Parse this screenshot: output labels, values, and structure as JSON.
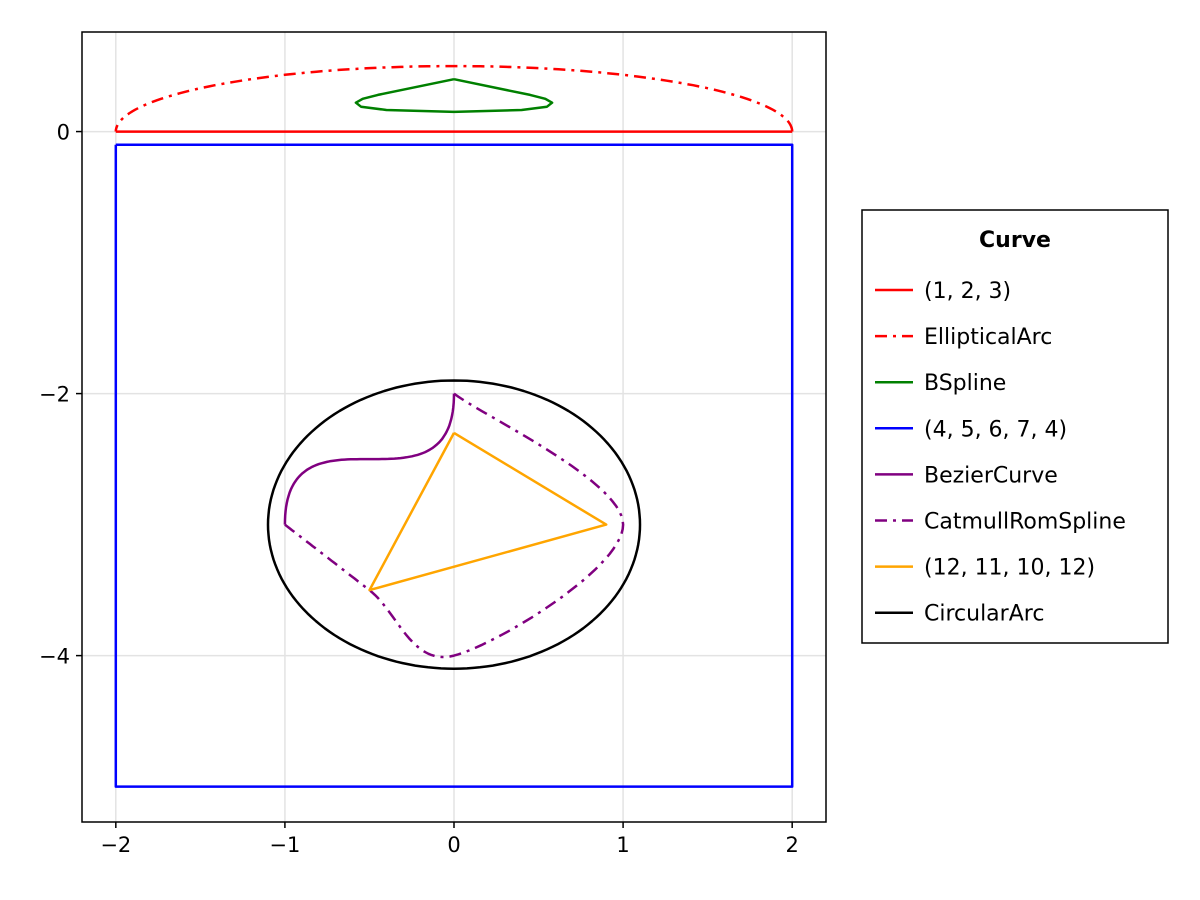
{
  "chart_data": {
    "type": "line",
    "title": "",
    "xlabel": "",
    "ylabel": "",
    "xlim": [
      -2.2,
      2.2
    ],
    "ylim": [
      -5.27,
      0.76
    ],
    "grid": true,
    "xticks": [
      -2,
      -1,
      0,
      1,
      2
    ],
    "yticks": [
      0,
      -2,
      -4
    ],
    "xtick_labels": [
      "−2",
      "−1",
      "0",
      "1",
      "2"
    ],
    "ytick_labels": [
      "0",
      "−2",
      "−4"
    ],
    "legend": {
      "title": "Curve",
      "placement": "right"
    },
    "series": [
      {
        "name": "(1, 2, 3)",
        "kind": "polyline",
        "color": "#ff0000",
        "style": "solid",
        "points": [
          [
            -2,
            0
          ],
          [
            0,
            0
          ],
          [
            2,
            0
          ]
        ]
      },
      {
        "name": "EllipticalArc",
        "kind": "elliptical-arc",
        "color": "#ff0000",
        "style": "dashdot",
        "center": [
          0,
          0
        ],
        "radii": [
          2,
          0.5
        ],
        "angle_range_deg": [
          0,
          180
        ]
      },
      {
        "name": "BSpline",
        "kind": "polyline",
        "color": "#008000",
        "style": "solid",
        "points": [
          [
            0,
            0.4
          ],
          [
            0.45,
            0.28
          ],
          [
            0.54,
            0.25
          ],
          [
            0.58,
            0.22
          ],
          [
            0.55,
            0.19
          ],
          [
            0.4,
            0.165
          ],
          [
            0,
            0.15
          ],
          [
            -0.4,
            0.165
          ],
          [
            -0.55,
            0.19
          ],
          [
            -0.58,
            0.22
          ],
          [
            -0.54,
            0.25
          ],
          [
            -0.45,
            0.28
          ],
          [
            0,
            0.4
          ]
        ]
      },
      {
        "name": "(4, 5, 6, 7, 4)",
        "kind": "polyline",
        "color": "#0000ff",
        "style": "solid",
        "points": [
          [
            -2,
            -0.1
          ],
          [
            2,
            -0.1
          ],
          [
            2,
            -5
          ],
          [
            -2,
            -5
          ],
          [
            -2,
            -0.1
          ]
        ]
      },
      {
        "name": "BezierCurve",
        "kind": "cubic-bezier",
        "color": "#800080",
        "style": "solid",
        "points": [
          [
            0,
            -2
          ],
          [
            0,
            -3
          ],
          [
            -1,
            -2
          ],
          [
            -1,
            -3
          ]
        ]
      },
      {
        "name": "CatmullRomSpline",
        "kind": "catmull-rom",
        "color": "#800080",
        "style": "dashdot",
        "points": [
          [
            -1,
            -3
          ],
          [
            -0.5,
            -3.5
          ],
          [
            0,
            -4
          ],
          [
            1,
            -3
          ],
          [
            0,
            -2
          ]
        ]
      },
      {
        "name": "(12, 11, 10, 12)",
        "kind": "polyline",
        "color": "#ffa500",
        "style": "solid",
        "points": [
          [
            0,
            -2.3
          ],
          [
            0.9,
            -3
          ],
          [
            -0.5,
            -3.5
          ],
          [
            0,
            -2.3
          ]
        ]
      },
      {
        "name": "CircularArc",
        "kind": "circle",
        "color": "#000000",
        "style": "solid",
        "center": [
          0,
          -3
        ],
        "radius": 1.1
      }
    ]
  }
}
